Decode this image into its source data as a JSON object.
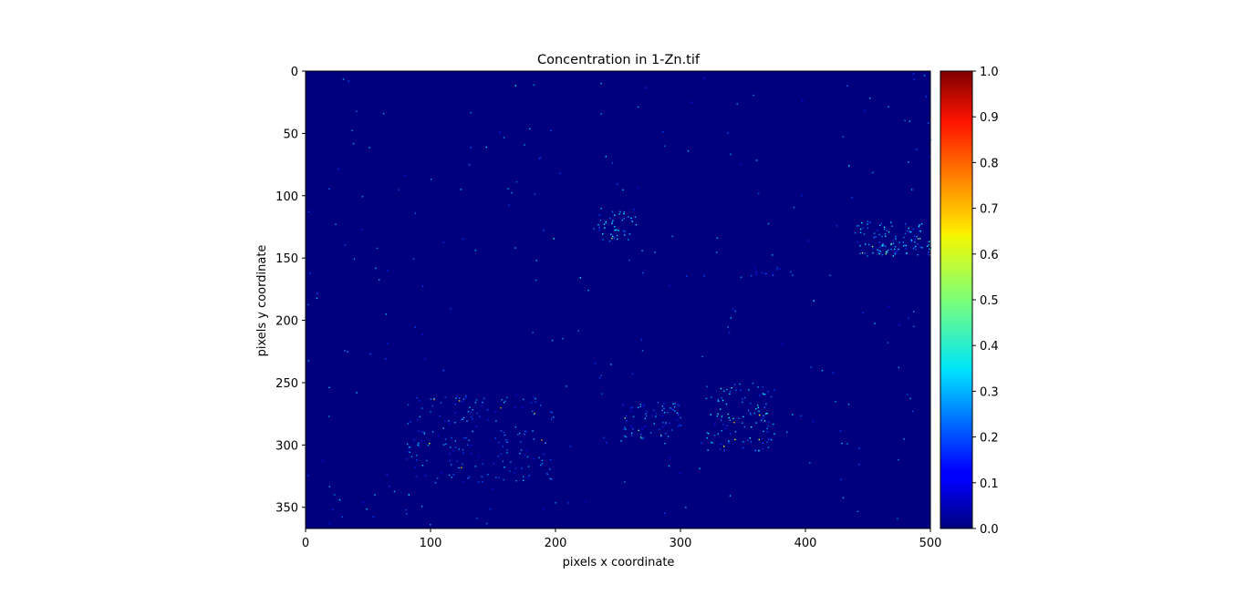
{
  "chart_data": {
    "type": "heatmap",
    "title": "Concentration in 1-Zn.tif",
    "xlabel": "pixels x coordinate",
    "ylabel": "pixels y coordinate",
    "xlim": [
      0,
      500
    ],
    "ylim": [
      367,
      0
    ],
    "y_inverted": true,
    "grid": false,
    "x_ticks": [
      0,
      100,
      200,
      300,
      400,
      500
    ],
    "y_ticks": [
      0,
      50,
      100,
      150,
      200,
      250,
      300,
      350
    ],
    "colormap": "jet",
    "background_value": 0.0,
    "colorbar": {
      "min": 0.0,
      "max": 1.0,
      "ticks": [
        "0.0",
        "0.1",
        "0.2",
        "0.3",
        "0.4",
        "0.5",
        "0.6",
        "0.7",
        "0.8",
        "0.9",
        "1.0"
      ]
    },
    "features": [
      {
        "region": "upper-middle cluster",
        "x_range": [
          230,
          265
        ],
        "y_range": [
          112,
          135
        ],
        "typical_value": 0.3,
        "max_value": 0.65
      },
      {
        "region": "right streak",
        "x_range": [
          440,
          500
        ],
        "y_range": [
          120,
          148
        ],
        "typical_value": 0.3,
        "max_value": 0.55
      },
      {
        "region": "faint streak",
        "x_range": [
          355,
          400
        ],
        "y_range": [
          157,
          164
        ],
        "typical_value": 0.2,
        "max_value": 0.3
      },
      {
        "region": "lower band left",
        "x_range": [
          80,
          200
        ],
        "y_range": [
          260,
          330
        ],
        "typical_value": 0.25,
        "max_value": 0.75
      },
      {
        "region": "lower band middle",
        "x_range": [
          255,
          300
        ],
        "y_range": [
          265,
          295
        ],
        "typical_value": 0.25,
        "max_value": 0.5
      },
      {
        "region": "lower band right",
        "x_range": [
          320,
          375
        ],
        "y_range": [
          250,
          305
        ],
        "typical_value": 0.3,
        "max_value": 0.75
      },
      {
        "region": "sparse background specks",
        "x_range": [
          0,
          500
        ],
        "y_range": [
          0,
          367
        ],
        "typical_value": 0.25,
        "max_value": 0.4
      }
    ]
  }
}
